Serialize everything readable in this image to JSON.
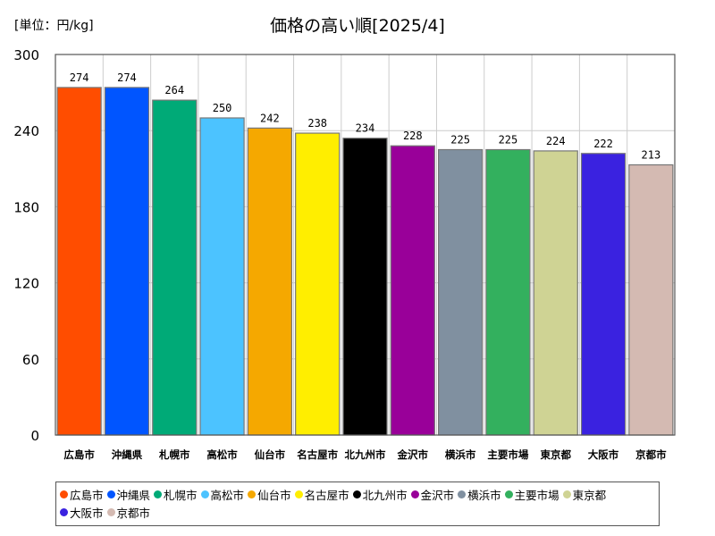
{
  "unit_label": "[単位：円/kg]",
  "chart_data": {
    "type": "bar",
    "title": "価格の高い順[2025/4]",
    "xlabel": "",
    "ylabel": "",
    "ylim": [
      0,
      300
    ],
    "yticks": [
      0,
      60,
      120,
      180,
      240,
      300
    ],
    "grid": true,
    "legend_position": "bottom",
    "categories": [
      "広島市",
      "沖縄県",
      "札幌市",
      "高松市",
      "仙台市",
      "名古屋市",
      "北九州市",
      "金沢市",
      "横浜市",
      "主要市場",
      "東京都",
      "大阪市",
      "京都市"
    ],
    "values": [
      274,
      274,
      264,
      250,
      242,
      238,
      234,
      228,
      225,
      225,
      224,
      222,
      213
    ],
    "colors": [
      "#ff4d00",
      "#0055ff",
      "#00aa77",
      "#4cc3ff",
      "#f5a800",
      "#ffee00",
      "#000000",
      "#990099",
      "#8090a0",
      "#33b05e",
      "#cfd394",
      "#3a22e0",
      "#d4bab2"
    ]
  }
}
